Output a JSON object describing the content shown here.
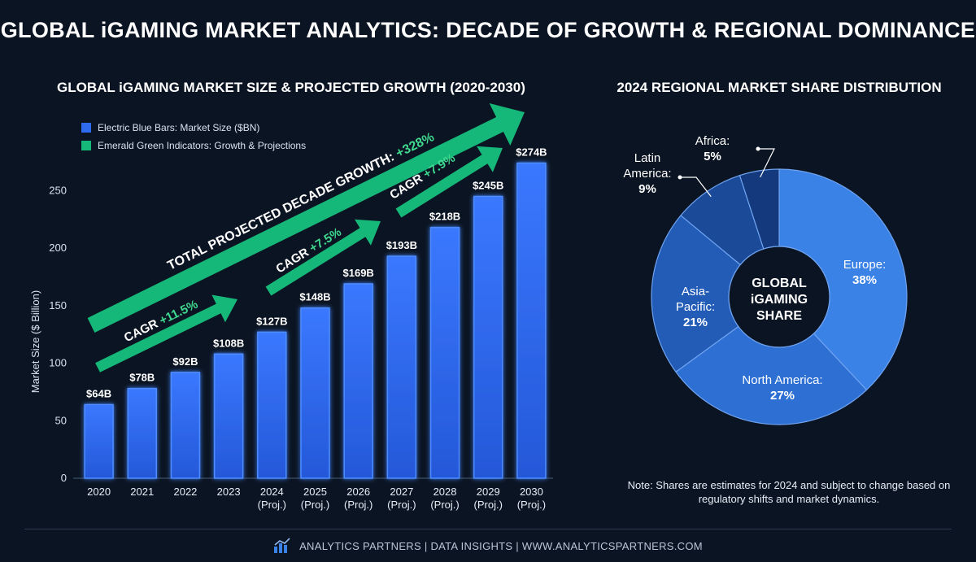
{
  "title": "GLOBAL iGAMING MARKET ANALYTICS: DECADE OF GROWTH & REGIONAL DOMINANCE",
  "colors": {
    "background": "#0b1422",
    "bar": "#2f6bf0",
    "bar_glow": "#4d8dff",
    "emerald": "#16b87a",
    "emerald_text": "#3fd98f"
  },
  "legend": [
    {
      "label": "Electric Blue Bars: Market Size ($BN)",
      "color": "#2f6bf0"
    },
    {
      "label": "Emerald Green Indicators: Growth & Projections",
      "color": "#16b87a"
    }
  ],
  "annotations": {
    "decade_prefix": "TOTAL PROJECTED DECADE GROWTH: ",
    "decade_value": "+328%",
    "cagr1_prefix": "CAGR ",
    "cagr1_value": "+11.5%",
    "cagr2_prefix": "CAGR ",
    "cagr2_value": "+7.5%",
    "cagr3_prefix": "CAGR ",
    "cagr3_value": "+7.9%"
  },
  "chart_data": [
    {
      "type": "bar",
      "title": "GLOBAL iGAMING MARKET SIZE & PROJECTED GROWTH (2020-2030)",
      "ylabel": "Market Size ($ Billion)",
      "xlabel": "",
      "ylim": [
        0,
        280
      ],
      "yticks": [
        0,
        50,
        100,
        150,
        200,
        250
      ],
      "categories": [
        "2020",
        "2021",
        "2022",
        "2023",
        "2024",
        "2025",
        "2026",
        "2027",
        "2028",
        "2029",
        "2030"
      ],
      "category_sublabels": [
        "",
        "",
        "",
        "",
        "(Proj.)",
        "(Proj.)",
        "(Proj.)",
        "(Proj.)",
        "(Proj.)",
        "(Proj.)",
        "(Proj.)"
      ],
      "values": [
        64,
        78,
        92,
        108,
        127,
        148,
        169,
        193,
        218,
        245,
        274
      ],
      "value_labels": [
        "$64B",
        "$78B",
        "$92B",
        "$108B",
        "$127B",
        "$148B",
        "$169B",
        "$193B",
        "$218B",
        "$245B",
        "$274B"
      ],
      "grid": false
    },
    {
      "type": "pie",
      "title": "2024 REGIONAL MARKET SHARE DISTRIBUTION",
      "center_label": [
        "GLOBAL",
        "iGAMING",
        "SHARE"
      ],
      "slices": [
        {
          "name": "Europe:",
          "value": 38,
          "label": "38%",
          "color": "#3b82e6"
        },
        {
          "name": "North America:",
          "value": 27,
          "label": "27%",
          "color": "#2d6fd3"
        },
        {
          "name": "Asia-Pacific:",
          "value": 21,
          "label": "21%",
          "color": "#235cb7"
        },
        {
          "name": "Latin America:",
          "value": 9,
          "label": "9%",
          "color": "#1b4a99"
        },
        {
          "name": "Africa:",
          "value": 5,
          "label": "5%",
          "color": "#143a7d"
        }
      ]
    }
  ],
  "note": "Note: Shares are estimates for 2024 and subject to change based on regulatory shifts and market dynamics.",
  "footer": "ANALYTICS PARTNERS | DATA INSIGHTS | WWW.ANALYTICSPARTNERS.COM"
}
